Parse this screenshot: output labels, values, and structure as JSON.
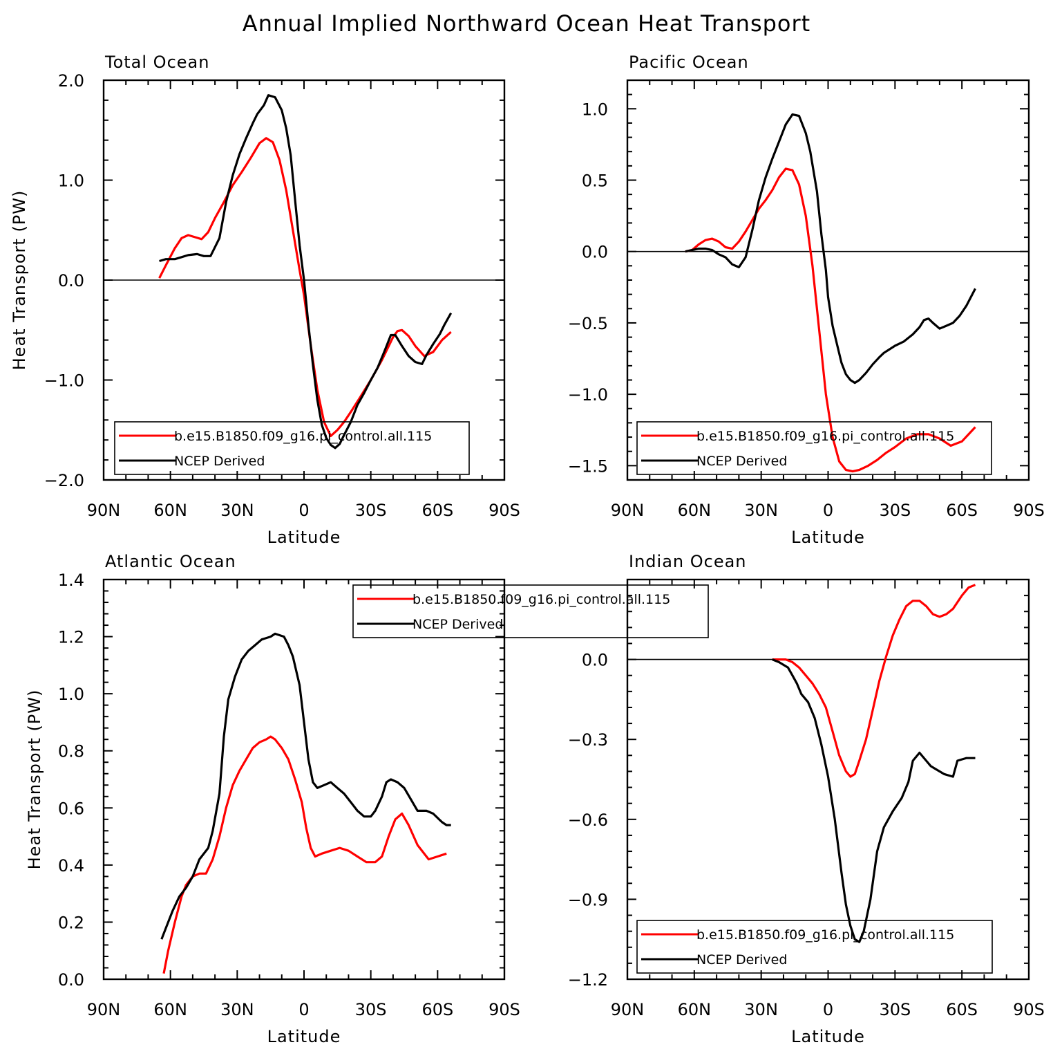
{
  "figure": {
    "title": "Annual Implied Northward Ocean Heat Transport"
  },
  "legend_labels": {
    "model": "b.e15.B1850.f09_g16.pi_control.all.115",
    "ncep": "NCEP Derived"
  },
  "colors": {
    "model": "#ff0000",
    "ncep": "#000000",
    "zero_line": "#000000"
  },
  "chart_data": [
    {
      "type": "line",
      "title": "Total Ocean",
      "xlabel": "Latitude",
      "ylabel": "Heat Transport (PW)",
      "x_ticks": [
        90,
        60,
        30,
        0,
        -30,
        -60,
        -90
      ],
      "x_tick_labels": [
        "90N",
        "60N",
        "30N",
        "0",
        "30S",
        "60S",
        "90S"
      ],
      "xlim": [
        90,
        -90
      ],
      "ylim": [
        -2.0,
        2.0
      ],
      "y_ticks": [
        2.0,
        1.0,
        0.0,
        -1.0,
        -2.0
      ],
      "y_tick_labels": [
        "2.0",
        "1.0",
        "0.0",
        "−1.0",
        "−2.0"
      ],
      "zero_line": true,
      "legend": "bottom-left",
      "series": [
        {
          "name": "b.e15.B1850.f09_g16.pi_control.all.115",
          "color_key": "model",
          "x": [
            65,
            62,
            58,
            55,
            52,
            49,
            46,
            43,
            40,
            36,
            32,
            28,
            24,
            20,
            17,
            14,
            11,
            8,
            5,
            2,
            0,
            -3,
            -6,
            -9,
            -12,
            -15,
            -18,
            -21,
            -25,
            -30,
            -35,
            -40,
            -42,
            -44,
            -47,
            -50,
            -54,
            -58,
            -62,
            -66
          ],
          "y": [
            0.02,
            0.15,
            0.32,
            0.42,
            0.45,
            0.43,
            0.41,
            0.48,
            0.62,
            0.78,
            0.95,
            1.08,
            1.22,
            1.37,
            1.42,
            1.38,
            1.2,
            0.9,
            0.5,
            0.1,
            -0.15,
            -0.65,
            -1.1,
            -1.42,
            -1.56,
            -1.5,
            -1.42,
            -1.32,
            -1.18,
            -1.0,
            -0.8,
            -0.57,
            -0.51,
            -0.5,
            -0.56,
            -0.66,
            -0.76,
            -0.72,
            -0.6,
            -0.52
          ]
        },
        {
          "name": "NCEP Derived",
          "color_key": "ncep",
          "x": [
            65,
            62,
            58,
            55,
            52,
            48,
            45,
            42,
            38,
            35,
            32,
            29,
            26,
            23,
            21,
            18,
            16,
            13,
            10,
            8,
            6,
            4,
            2,
            0,
            -2,
            -4,
            -6,
            -8,
            -10,
            -12,
            -14,
            -16,
            -18,
            -21,
            -24,
            -27,
            -30,
            -33,
            -36,
            -39,
            -41,
            -44,
            -47,
            -50,
            -53,
            -55,
            -58,
            -61,
            -63,
            -66
          ],
          "y": [
            0.19,
            0.21,
            0.21,
            0.23,
            0.25,
            0.26,
            0.24,
            0.24,
            0.42,
            0.78,
            1.05,
            1.26,
            1.42,
            1.57,
            1.66,
            1.75,
            1.85,
            1.83,
            1.7,
            1.52,
            1.25,
            0.8,
            0.35,
            0.0,
            -0.45,
            -0.85,
            -1.2,
            -1.45,
            -1.58,
            -1.65,
            -1.68,
            -1.64,
            -1.55,
            -1.42,
            -1.25,
            -1.13,
            -1.0,
            -0.88,
            -0.72,
            -0.55,
            -0.55,
            -0.66,
            -0.76,
            -0.82,
            -0.84,
            -0.75,
            -0.64,
            -0.54,
            -0.45,
            -0.33
          ]
        }
      ]
    },
    {
      "type": "line",
      "title": "Pacific Ocean",
      "xlabel": "Latitude",
      "ylabel": "",
      "x_ticks": [
        90,
        60,
        30,
        0,
        -30,
        -60,
        -90
      ],
      "x_tick_labels": [
        "90N",
        "60N",
        "30N",
        "0",
        "30S",
        "60S",
        "90S"
      ],
      "xlim": [
        90,
        -90
      ],
      "ylim": [
        -1.6,
        1.2
      ],
      "y_ticks": [
        1.0,
        0.5,
        0.0,
        -0.5,
        -1.0,
        -1.5
      ],
      "y_tick_labels": [
        "1.0",
        "0.5",
        "0.0",
        "−0.5",
        "−1.0",
        "−1.5"
      ],
      "zero_line": true,
      "legend": "bottom-left",
      "series": [
        {
          "name": "b.e15.B1850.f09_g16.pi_control.all.115",
          "color_key": "model",
          "x": [
            64,
            61,
            58,
            55,
            52,
            49,
            46,
            43,
            40,
            37,
            34,
            31,
            28,
            25,
            22,
            19,
            16,
            13,
            10,
            7,
            4,
            1,
            -2,
            -5,
            -8,
            -11,
            -14,
            -18,
            -22,
            -26,
            -30,
            -35,
            -40,
            -45,
            -50,
            -55,
            -60,
            -66
          ],
          "y": [
            0.0,
            0.01,
            0.05,
            0.08,
            0.09,
            0.07,
            0.03,
            0.02,
            0.07,
            0.14,
            0.22,
            0.3,
            0.36,
            0.43,
            0.52,
            0.58,
            0.57,
            0.47,
            0.25,
            -0.1,
            -0.55,
            -1.0,
            -1.3,
            -1.47,
            -1.53,
            -1.54,
            -1.53,
            -1.5,
            -1.46,
            -1.41,
            -1.37,
            -1.31,
            -1.28,
            -1.28,
            -1.31,
            -1.36,
            -1.33,
            -1.23
          ]
        },
        {
          "name": "NCEP Derived",
          "color_key": "ncep",
          "x": [
            64,
            61,
            58,
            55,
            52,
            49,
            46,
            43,
            40,
            37,
            34,
            31,
            28,
            25,
            22,
            19,
            16,
            13,
            10,
            8,
            5,
            3,
            1,
            0,
            -2,
            -4,
            -6,
            -8,
            -10,
            -12,
            -14,
            -17,
            -20,
            -23,
            -25,
            -28,
            -30,
            -34,
            -38,
            -41,
            -43,
            -45,
            -47,
            -50,
            -53,
            -56,
            -59,
            -62,
            -66
          ],
          "y": [
            0.0,
            0.01,
            0.02,
            0.02,
            0.01,
            -0.02,
            -0.04,
            -0.09,
            -0.11,
            -0.04,
            0.15,
            0.36,
            0.52,
            0.65,
            0.77,
            0.89,
            0.96,
            0.95,
            0.83,
            0.7,
            0.42,
            0.12,
            -0.13,
            -0.32,
            -0.52,
            -0.65,
            -0.78,
            -0.86,
            -0.9,
            -0.92,
            -0.9,
            -0.85,
            -0.79,
            -0.74,
            -0.71,
            -0.68,
            -0.66,
            -0.63,
            -0.58,
            -0.53,
            -0.48,
            -0.47,
            -0.5,
            -0.54,
            -0.52,
            -0.5,
            -0.45,
            -0.38,
            -0.26
          ]
        }
      ]
    },
    {
      "type": "line",
      "title": "Atlantic Ocean",
      "xlabel": "Latitude",
      "ylabel": "Heat Transport (PW)",
      "x_ticks": [
        90,
        60,
        30,
        0,
        -30,
        -60,
        -90
      ],
      "x_tick_labels": [
        "90N",
        "60N",
        "30N",
        "0",
        "30S",
        "60S",
        "90S"
      ],
      "xlim": [
        90,
        -90
      ],
      "ylim": [
        0.0,
        1.4
      ],
      "y_ticks": [
        1.4,
        1.2,
        1.0,
        0.8,
        0.6,
        0.4,
        0.2,
        0.0
      ],
      "y_tick_labels": [
        "1.4",
        "1.2",
        "1.0",
        "0.8",
        "0.6",
        "0.4",
        "0.2",
        "0.0"
      ],
      "zero_line": false,
      "legend": "top-right",
      "series": [
        {
          "name": "b.e15.B1850.f09_g16.pi_control.all.115",
          "color_key": "model",
          "x": [
            63,
            61,
            58,
            55,
            53,
            50,
            47,
            44,
            41,
            38,
            35,
            32,
            29,
            26,
            23,
            20,
            17,
            15,
            13,
            10,
            7,
            4,
            1,
            -1,
            -3,
            -5,
            -8,
            -12,
            -16,
            -20,
            -24,
            -28,
            -32,
            -35,
            -38,
            -41,
            -44,
            -47,
            -51,
            -56,
            -60,
            -64
          ],
          "y": [
            0.02,
            0.1,
            0.2,
            0.29,
            0.33,
            0.36,
            0.37,
            0.37,
            0.42,
            0.5,
            0.6,
            0.68,
            0.73,
            0.77,
            0.81,
            0.83,
            0.84,
            0.85,
            0.84,
            0.81,
            0.77,
            0.7,
            0.62,
            0.53,
            0.46,
            0.43,
            0.44,
            0.45,
            0.46,
            0.45,
            0.43,
            0.41,
            0.41,
            0.43,
            0.5,
            0.56,
            0.58,
            0.54,
            0.47,
            0.42,
            0.43,
            0.44
          ]
        },
        {
          "name": "NCEP Derived",
          "color_key": "ncep",
          "x": [
            64,
            62,
            59,
            56,
            53,
            50,
            47,
            43,
            41,
            38,
            36,
            34,
            31,
            28,
            25,
            22,
            19,
            15,
            13,
            9,
            7,
            5,
            2,
            0,
            -2,
            -4,
            -6,
            -9,
            -12,
            -15,
            -18,
            -21,
            -24,
            -27,
            -30,
            -32,
            -35,
            -37,
            -39,
            -42,
            -45,
            -48,
            -51,
            -55,
            -58,
            -62,
            -64,
            -66
          ],
          "y": [
            0.14,
            0.18,
            0.24,
            0.29,
            0.32,
            0.36,
            0.42,
            0.46,
            0.52,
            0.65,
            0.85,
            0.98,
            1.06,
            1.12,
            1.15,
            1.17,
            1.19,
            1.2,
            1.21,
            1.2,
            1.17,
            1.13,
            1.03,
            0.9,
            0.77,
            0.69,
            0.67,
            0.68,
            0.69,
            0.67,
            0.65,
            0.62,
            0.59,
            0.57,
            0.57,
            0.59,
            0.64,
            0.69,
            0.7,
            0.69,
            0.67,
            0.63,
            0.59,
            0.59,
            0.58,
            0.55,
            0.54,
            0.54
          ]
        }
      ]
    },
    {
      "type": "line",
      "title": "Indian Ocean",
      "xlabel": "Latitude",
      "ylabel": "",
      "x_ticks": [
        90,
        60,
        30,
        0,
        -30,
        -60,
        -90
      ],
      "x_tick_labels": [
        "90N",
        "60N",
        "30N",
        "0",
        "30S",
        "60S",
        "90S"
      ],
      "xlim": [
        90,
        -90
      ],
      "ylim": [
        -1.2,
        0.3
      ],
      "y_ticks": [
        0.0,
        -0.3,
        -0.6,
        -0.9,
        -1.2
      ],
      "y_tick_labels": [
        "0.0",
        "−0.3",
        "−0.6",
        "−0.9",
        "−1.2"
      ],
      "zero_line": true,
      "legend": "bottom-left",
      "series": [
        {
          "name": "b.e15.B1850.f09_g16.pi_control.all.115",
          "color_key": "model",
          "x": [
            25,
            22,
            19,
            16,
            13,
            10,
            7,
            4,
            1,
            -2,
            -5,
            -8,
            -10,
            -12,
            -14,
            -17,
            -20,
            -23,
            -26,
            -29,
            -32,
            -35,
            -38,
            -41,
            -44,
            -47,
            -50,
            -53,
            -56,
            -60,
            -63,
            -66
          ],
          "y": [
            0.0,
            0.0,
            0.0,
            -0.01,
            -0.03,
            -0.06,
            -0.09,
            -0.13,
            -0.18,
            -0.27,
            -0.36,
            -0.42,
            -0.44,
            -0.43,
            -0.38,
            -0.3,
            -0.19,
            -0.08,
            0.01,
            0.09,
            0.15,
            0.2,
            0.22,
            0.22,
            0.2,
            0.17,
            0.16,
            0.17,
            0.19,
            0.24,
            0.27,
            0.28
          ]
        },
        {
          "name": "NCEP Derived",
          "color_key": "ncep",
          "x": [
            25,
            22,
            18,
            16,
            14,
            12,
            9,
            6,
            3,
            0,
            -3,
            -6,
            -8,
            -10,
            -12,
            -14,
            -16,
            -19,
            -22,
            -25,
            -29,
            -33,
            -36,
            -38,
            -41,
            -44,
            -46,
            -48,
            -52,
            -56,
            -58,
            -62,
            -66
          ],
          "y": [
            0.0,
            -0.01,
            -0.03,
            -0.06,
            -0.09,
            -0.13,
            -0.16,
            -0.22,
            -0.32,
            -0.44,
            -0.6,
            -0.8,
            -0.92,
            -1.0,
            -1.05,
            -1.06,
            -1.02,
            -0.9,
            -0.72,
            -0.63,
            -0.57,
            -0.52,
            -0.46,
            -0.38,
            -0.35,
            -0.38,
            -0.4,
            -0.41,
            -0.43,
            -0.44,
            -0.38,
            -0.37,
            -0.37
          ]
        }
      ]
    }
  ]
}
